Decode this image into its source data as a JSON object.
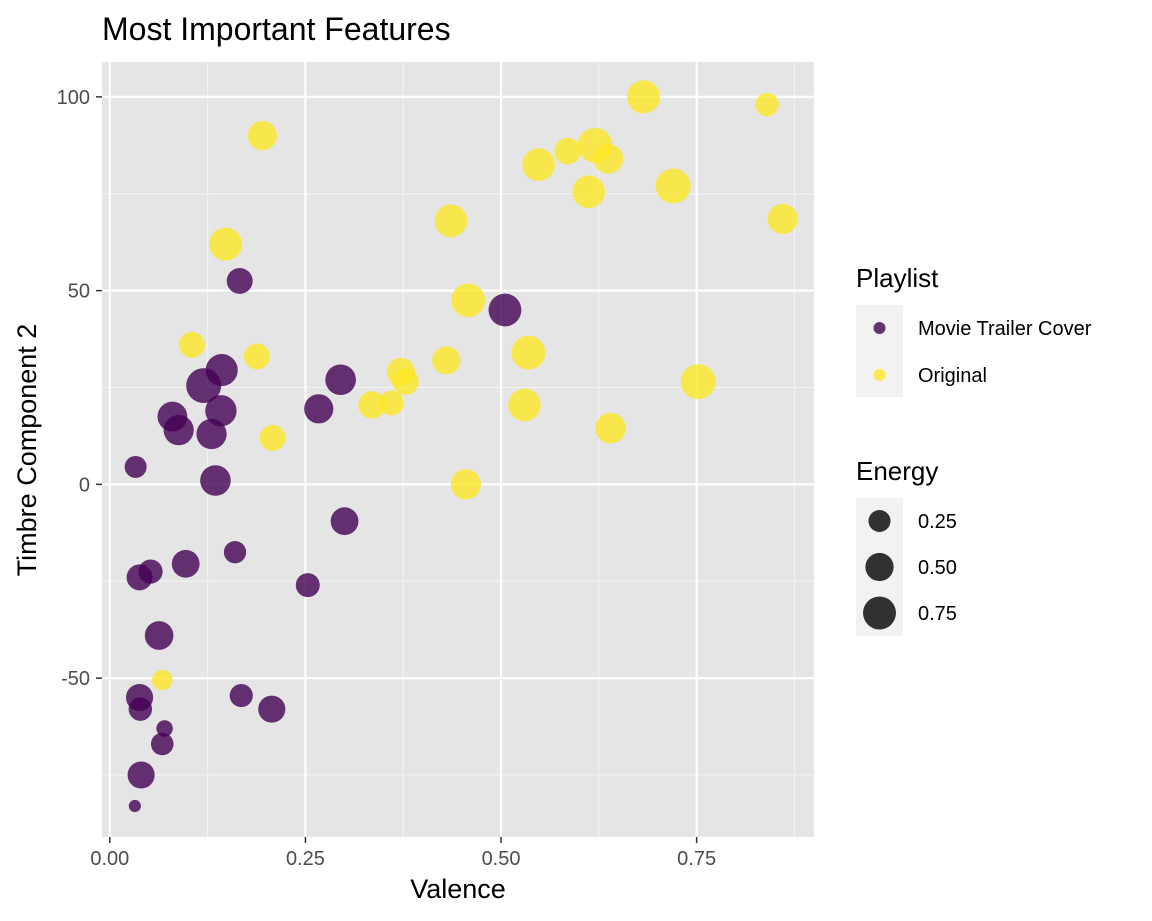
{
  "chart_data": {
    "type": "scatter",
    "title": "Most Important Features",
    "xlabel": "Valence",
    "ylabel": "Timbre Component 2",
    "xlim": [
      -0.01,
      0.9
    ],
    "ylim": [
      -91,
      109
    ],
    "x_ticks": [
      0.0,
      0.25,
      0.5,
      0.75
    ],
    "x_tick_labels": [
      "0.00",
      "0.25",
      "0.50",
      "0.75"
    ],
    "y_ticks": [
      -50,
      0,
      50,
      100
    ],
    "y_tick_labels": [
      "-50",
      "0",
      "50",
      "100"
    ],
    "grid": true,
    "background": "#e5e5e5",
    "legend_position": "right",
    "color_legend": {
      "title": "Playlist",
      "entries": [
        {
          "label": "Movie Trailer Cover",
          "color": "#440154"
        },
        {
          "label": "Original",
          "color": "#fde725"
        }
      ]
    },
    "size_legend": {
      "title": "Energy",
      "entries": [
        {
          "label": "0.25",
          "value": 0.25
        },
        {
          "label": "0.50",
          "value": 0.5
        },
        {
          "label": "0.75",
          "value": 0.75
        }
      ]
    },
    "series": [
      {
        "name": "Movie Trailer Cover",
        "color": "#440154",
        "points": [
          {
            "x": 0.032,
            "y": -83,
            "energy": 0.03
          },
          {
            "x": 0.033,
            "y": 4.5,
            "energy": 0.25
          },
          {
            "x": 0.038,
            "y": -24,
            "energy": 0.4
          },
          {
            "x": 0.038,
            "y": -55,
            "energy": 0.45
          },
          {
            "x": 0.039,
            "y": -58,
            "energy": 0.3
          },
          {
            "x": 0.04,
            "y": -75,
            "energy": 0.45
          },
          {
            "x": 0.052,
            "y": -22.5,
            "energy": 0.33
          },
          {
            "x": 0.063,
            "y": -39,
            "energy": 0.52
          },
          {
            "x": 0.067,
            "y": -67,
            "energy": 0.27
          },
          {
            "x": 0.07,
            "y": -63,
            "energy": 0.1
          },
          {
            "x": 0.08,
            "y": 17.5,
            "energy": 0.58
          },
          {
            "x": 0.088,
            "y": 14,
            "energy": 0.6
          },
          {
            "x": 0.097,
            "y": -20.5,
            "energy": 0.48
          },
          {
            "x": 0.12,
            "y": 25.5,
            "energy": 0.87
          },
          {
            "x": 0.13,
            "y": 13,
            "energy": 0.6
          },
          {
            "x": 0.135,
            "y": 1,
            "energy": 0.62
          },
          {
            "x": 0.142,
            "y": 19,
            "energy": 0.66
          },
          {
            "x": 0.143,
            "y": 29.5,
            "energy": 0.7
          },
          {
            "x": 0.16,
            "y": -17.5,
            "energy": 0.26
          },
          {
            "x": 0.166,
            "y": 52.5,
            "energy": 0.4
          },
          {
            "x": 0.168,
            "y": -54.5,
            "energy": 0.29
          },
          {
            "x": 0.207,
            "y": -58,
            "energy": 0.45
          },
          {
            "x": 0.253,
            "y": -26,
            "energy": 0.32
          },
          {
            "x": 0.267,
            "y": 19.5,
            "energy": 0.55
          },
          {
            "x": 0.295,
            "y": 27,
            "energy": 0.62
          },
          {
            "x": 0.3,
            "y": -9.5,
            "energy": 0.48
          },
          {
            "x": 0.505,
            "y": 45,
            "energy": 0.74
          }
        ]
      },
      {
        "name": "Original",
        "color": "#fde725",
        "points": [
          {
            "x": 0.067,
            "y": -50.5,
            "energy": 0.2
          },
          {
            "x": 0.105,
            "y": 36,
            "energy": 0.4
          },
          {
            "x": 0.148,
            "y": 62,
            "energy": 0.75
          },
          {
            "x": 0.188,
            "y": 33,
            "energy": 0.4
          },
          {
            "x": 0.195,
            "y": 90,
            "energy": 0.55
          },
          {
            "x": 0.208,
            "y": 12,
            "energy": 0.4
          },
          {
            "x": 0.335,
            "y": 20.5,
            "energy": 0.47
          },
          {
            "x": 0.36,
            "y": 21,
            "energy": 0.35
          },
          {
            "x": 0.372,
            "y": 29,
            "energy": 0.5
          },
          {
            "x": 0.378,
            "y": 26.5,
            "energy": 0.42
          },
          {
            "x": 0.43,
            "y": 32,
            "energy": 0.5
          },
          {
            "x": 0.436,
            "y": 68,
            "energy": 0.73
          },
          {
            "x": 0.455,
            "y": 0,
            "energy": 0.6
          },
          {
            "x": 0.458,
            "y": 47.5,
            "energy": 0.8
          },
          {
            "x": 0.53,
            "y": 20.5,
            "energy": 0.73
          },
          {
            "x": 0.535,
            "y": 34,
            "energy": 0.8
          },
          {
            "x": 0.548,
            "y": 82.5,
            "energy": 0.73
          },
          {
            "x": 0.585,
            "y": 86,
            "energy": 0.42
          },
          {
            "x": 0.612,
            "y": 75.5,
            "energy": 0.73
          },
          {
            "x": 0.62,
            "y": 87.5,
            "energy": 0.85
          },
          {
            "x": 0.637,
            "y": 84,
            "energy": 0.58
          },
          {
            "x": 0.64,
            "y": 14.5,
            "energy": 0.62
          },
          {
            "x": 0.682,
            "y": 100,
            "energy": 0.76
          },
          {
            "x": 0.72,
            "y": 77,
            "energy": 0.87
          },
          {
            "x": 0.752,
            "y": 26.5,
            "energy": 0.87
          },
          {
            "x": 0.84,
            "y": 98,
            "energy": 0.3
          },
          {
            "x": 0.86,
            "y": 68.5,
            "energy": 0.6
          }
        ]
      }
    ]
  }
}
